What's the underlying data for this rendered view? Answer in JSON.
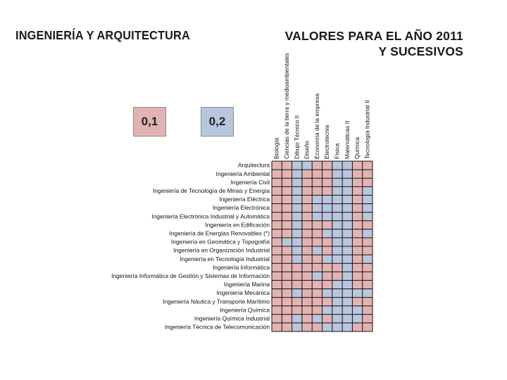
{
  "header": {
    "title_left": "INGENIERÍA Y ARQUITECTURA",
    "title_right_line1": "VALORES PARA EL AÑO 2011",
    "title_right_line2": "Y SUCESIVOS"
  },
  "legend": {
    "items": [
      {
        "label": "0,1",
        "color": "#e3b3b3"
      },
      {
        "label": "0,2",
        "color": "#b9c7de"
      }
    ]
  },
  "chart_data": {
    "type": "heatmap",
    "columns": [
      "Biología",
      "Ciencias de la tierra y medioambientales",
      "Dibujo Técnico II",
      "Diseño",
      "Economía de la empresa",
      "Electrotecnia",
      "Física",
      "Matemáticas II",
      "Química",
      "Tecnología Industrial II"
    ],
    "rows": [
      "Arquitectura",
      "Ingeniería Ambiental",
      "Ingeniería Civil",
      "Ingeniería de Tecnología de Minas y Energía",
      "Ingeniería Eléctrica",
      "Ingeniería Electrónica",
      "Ingeniería Electrónica Industrial y Automática",
      "Ingeniería en Edificación",
      "Ingeniería de Energías Renovables (*)",
      "Ingeniería en Geomática y Topografía",
      "Ingeniería en Organización Industrial",
      "Ingeniería en Tecnología Industrial",
      "Ingeniería Informática",
      "Ingeniería Informática de Gestión y Sistemas de Información",
      "Ingeniería Marina",
      "Ingeniería Mecánica",
      "Ingeniería Náutica y Transporte Marítimo",
      "Ingeniería Química",
      "Ingeniería Química Industrial",
      "Ingeniería Técnica de Telecomunicación"
    ],
    "values": [
      [
        0.1,
        0.1,
        0.2,
        0.2,
        0.1,
        0.1,
        0.2,
        0.2,
        0.1,
        0.1
      ],
      [
        0.1,
        0.1,
        0.2,
        0.1,
        0.1,
        0.1,
        0.2,
        0.2,
        0.1,
        0.1
      ],
      [
        0.1,
        0.1,
        0.2,
        0.1,
        0.1,
        0.1,
        0.2,
        0.2,
        0.1,
        0.1
      ],
      [
        0.1,
        0.1,
        0.2,
        0.1,
        0.1,
        0.1,
        0.2,
        0.2,
        0.1,
        0.2
      ],
      [
        0.1,
        0.1,
        0.2,
        0.1,
        0.2,
        0.2,
        0.2,
        0.2,
        0.1,
        0.2
      ],
      [
        0.1,
        0.1,
        0.2,
        0.1,
        0.2,
        0.2,
        0.2,
        0.2,
        0.1,
        0.2
      ],
      [
        0.1,
        0.1,
        0.2,
        0.1,
        0.2,
        0.2,
        0.2,
        0.2,
        0.1,
        0.2
      ],
      [
        0.1,
        0.1,
        0.2,
        0.1,
        0.1,
        0.1,
        0.2,
        0.2,
        0.1,
        0.1
      ],
      [
        0.1,
        0.1,
        0.2,
        0.1,
        0.1,
        0.2,
        0.2,
        0.2,
        0.1,
        0.2
      ],
      [
        0.1,
        0.2,
        0.2,
        0.1,
        0.1,
        0.1,
        0.2,
        0.2,
        0.1,
        0.1
      ],
      [
        0.1,
        0.1,
        0.2,
        0.1,
        0.2,
        0.1,
        0.2,
        0.2,
        0.1,
        0.1
      ],
      [
        0.1,
        0.1,
        0.2,
        0.1,
        0.1,
        0.2,
        0.2,
        0.2,
        0.1,
        0.2
      ],
      [
        0.1,
        0.1,
        0.1,
        0.1,
        0.1,
        0.1,
        0.1,
        0.2,
        0.1,
        0.1
      ],
      [
        0.1,
        0.1,
        0.1,
        0.1,
        0.2,
        0.1,
        0.1,
        0.2,
        0.1,
        0.1
      ],
      [
        0.1,
        0.1,
        0.1,
        0.1,
        0.1,
        0.1,
        0.2,
        0.2,
        0.1,
        0.1
      ],
      [
        0.1,
        0.1,
        0.2,
        0.1,
        0.1,
        0.2,
        0.2,
        0.2,
        0.2,
        0.2
      ],
      [
        0.1,
        0.1,
        0.1,
        0.1,
        0.1,
        0.1,
        0.2,
        0.2,
        0.1,
        0.1
      ],
      [
        0.1,
        0.1,
        0.1,
        0.1,
        0.1,
        0.2,
        0.2,
        0.2,
        0.2,
        0.1
      ],
      [
        0.1,
        0.1,
        0.2,
        0.1,
        0.2,
        0.1,
        0.2,
        0.2,
        0.2,
        0.1
      ],
      [
        0.1,
        0.1,
        0.2,
        0.1,
        0.1,
        0.2,
        0.2,
        0.2,
        0.1,
        0.1
      ]
    ],
    "color_low": "#e3b3b3",
    "color_high": "#b9c7de"
  }
}
